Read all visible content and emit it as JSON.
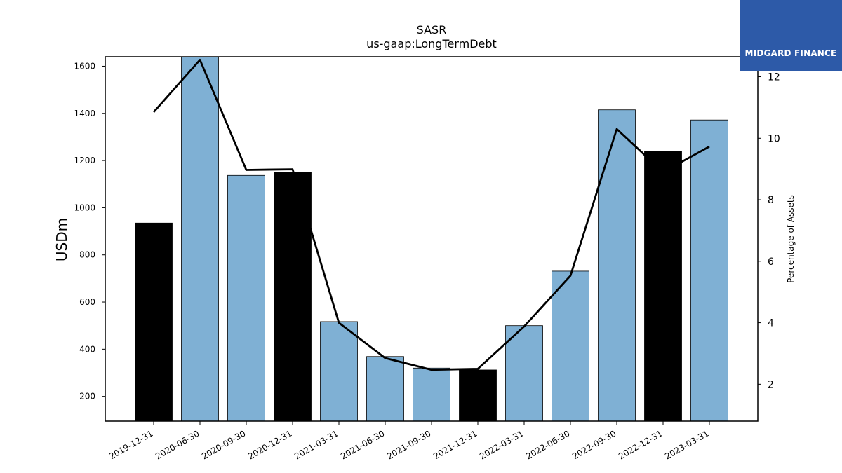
{
  "chart_data": {
    "type": "bar",
    "title": "SASR",
    "subtitle": "us-gaap:LongTermDebt",
    "ylabel": "USDm",
    "y2label": "Percentage of Assets",
    "ylim": [
      95,
      1640
    ],
    "y2lim": [
      0.8,
      12.65
    ],
    "yticks": [
      200,
      400,
      600,
      800,
      1000,
      1200,
      1400,
      1600
    ],
    "y2ticks": [
      2,
      4,
      6,
      8,
      10,
      12
    ],
    "categories": [
      "2019-12-31",
      "2020-06-30",
      "2020-09-30",
      "2020-12-31",
      "2021-03-31",
      "2021-06-30",
      "2021-09-30",
      "2021-12-31",
      "2022-03-31",
      "2022-06-30",
      "2022-09-30",
      "2022-12-31",
      "2023-03-31"
    ],
    "series": [
      {
        "type": "bar",
        "axis": "left",
        "values": [
          935,
          1640,
          1137,
          1150,
          517,
          369,
          320,
          312,
          500,
          731,
          1415,
          1240,
          1372
        ],
        "colors": [
          "#000000",
          "#7fb0d4",
          "#7fb0d4",
          "#000000",
          "#7fb0d4",
          "#7fb0d4",
          "#7fb0d4",
          "#000000",
          "#7fb0d4",
          "#7fb0d4",
          "#7fb0d4",
          "#000000",
          "#7fb0d4"
        ]
      },
      {
        "type": "line",
        "axis": "right",
        "color": "#000000",
        "values": [
          10.85,
          12.55,
          8.97,
          8.99,
          4.0,
          2.85,
          2.47,
          2.5,
          3.88,
          5.53,
          10.3,
          8.9,
          9.73
        ]
      }
    ],
    "grid": false,
    "legend": "none"
  },
  "logo": {
    "text": "MIDGARD FINANCE",
    "background": "#2d5aa8"
  }
}
